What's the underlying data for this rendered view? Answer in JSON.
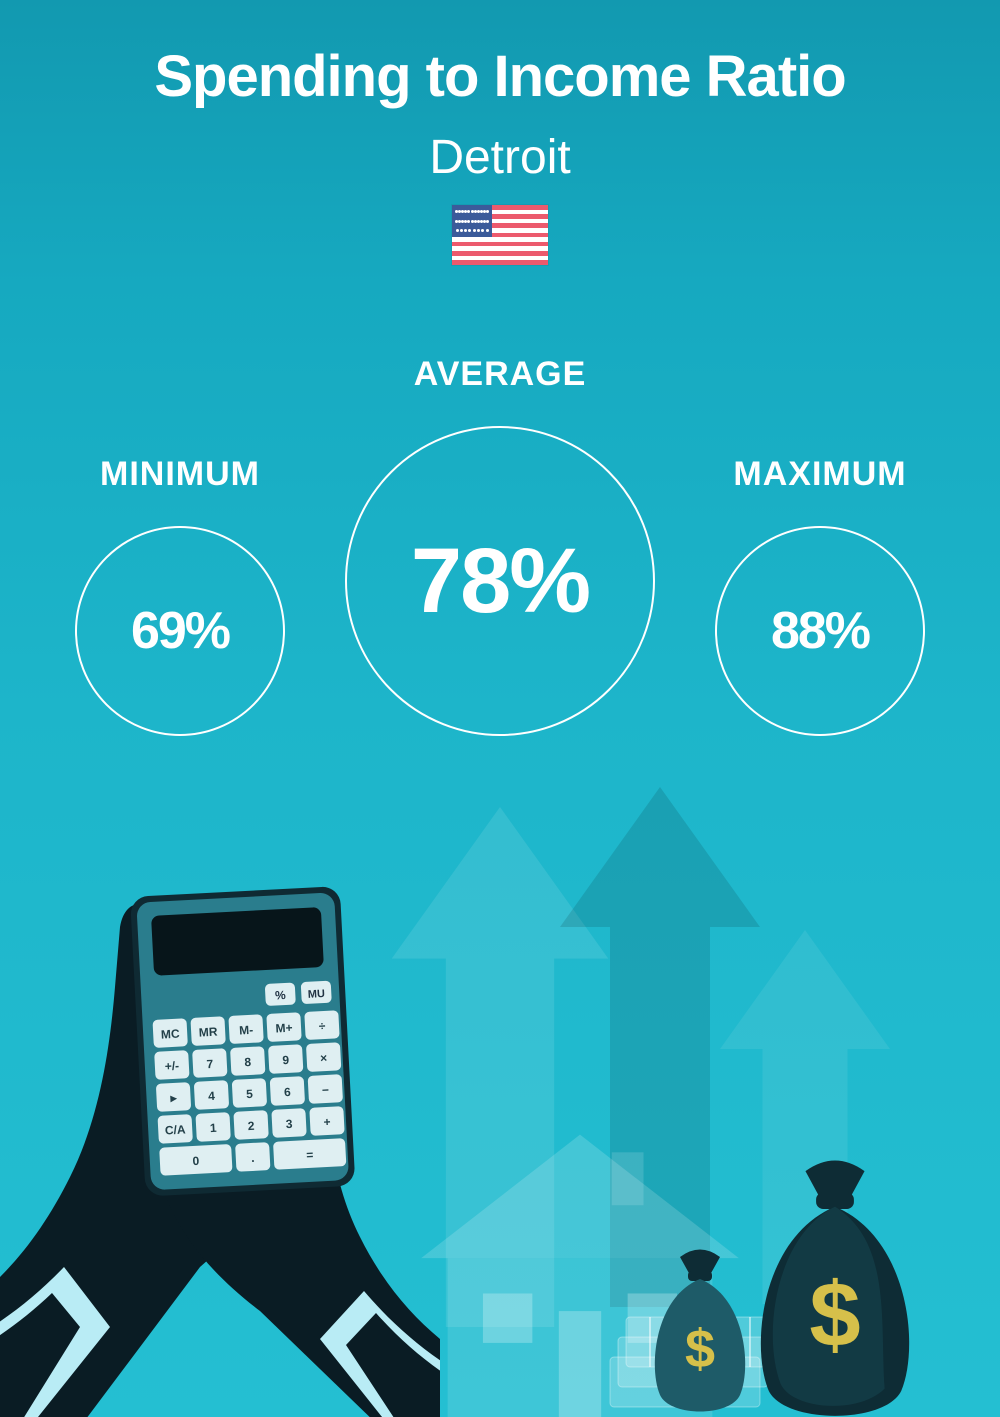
{
  "header": {
    "title": "Spending to Income Ratio",
    "title_fontsize": 58,
    "title_weight": 800,
    "subtitle": "Detroit",
    "subtitle_fontsize": 48,
    "subtitle_weight": 400,
    "flag": {
      "country": "United States",
      "stripe_color_a": "#ec5a6d",
      "stripe_color_b": "#ffffff",
      "canton_color": "#3b5b9a",
      "star_color": "#ffffff",
      "stripe_count": 13
    }
  },
  "colors": {
    "background_top": "#1299b0",
    "background_bottom": "#24bfd2",
    "text": "#ffffff",
    "circle_border": "#ffffff",
    "silhouette": "#0a1c24",
    "silhouette_cuff": "#b9ecf5",
    "arrow_fill": "rgba(255,255,255,0.10)",
    "arrow_fill_dark": "rgba(10,40,50,0.15)",
    "house_fill": "rgba(255,255,255,0.12)",
    "bag_dark": "#0e2c35",
    "bag_light": "#2a7d8d",
    "dollar": "#d6c04a"
  },
  "stats": {
    "label_fontsize": 34,
    "small_circle_diameter": 210,
    "small_value_fontsize": 52,
    "large_circle_diameter": 310,
    "large_value_fontsize": 92,
    "items": [
      {
        "key": "minimum",
        "label": "MINIMUM",
        "value": "69%",
        "emphasis": "small"
      },
      {
        "key": "average",
        "label": "AVERAGE",
        "value": "78%",
        "emphasis": "large"
      },
      {
        "key": "maximum",
        "label": "MAXIMUM",
        "value": "88%",
        "emphasis": "small"
      }
    ]
  },
  "illustration": {
    "type": "infographic",
    "elements": [
      "hands-holding-calculator",
      "up-arrows",
      "house",
      "money-bags",
      "cash-stack"
    ]
  }
}
